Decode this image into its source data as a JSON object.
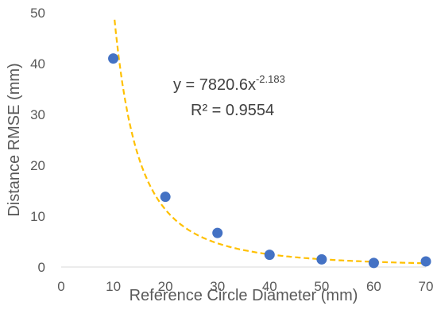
{
  "chart_data": {
    "type": "scatter",
    "xlabel": "Reference Circle Diameter (mm)",
    "ylabel": "Distance RMSE (mm)",
    "xlim": [
      0,
      70
    ],
    "ylim": [
      0,
      50
    ],
    "xticks": [
      "0",
      "10",
      "20",
      "30",
      "40",
      "50",
      "60",
      "70"
    ],
    "yticks": [
      "0",
      "10",
      "20",
      "30",
      "40",
      "50"
    ],
    "grid": false,
    "legend": "none",
    "series": [
      {
        "x": [
          10,
          20,
          30,
          40,
          50,
          60,
          70
        ],
        "y": [
          41,
          13.8,
          6.7,
          2.4,
          1.5,
          0.8,
          1.1
        ],
        "color": "#4472C4"
      }
    ],
    "trendline": {
      "kind": "power",
      "coefficient": 7820.6,
      "exponent": -2.183,
      "color": "#FFC000",
      "style": "dashed"
    },
    "annotations": {
      "equation_base": "y = 7820.6x",
      "equation_exponent": "-2.183",
      "r_squared": "R² = 0.9554"
    }
  }
}
